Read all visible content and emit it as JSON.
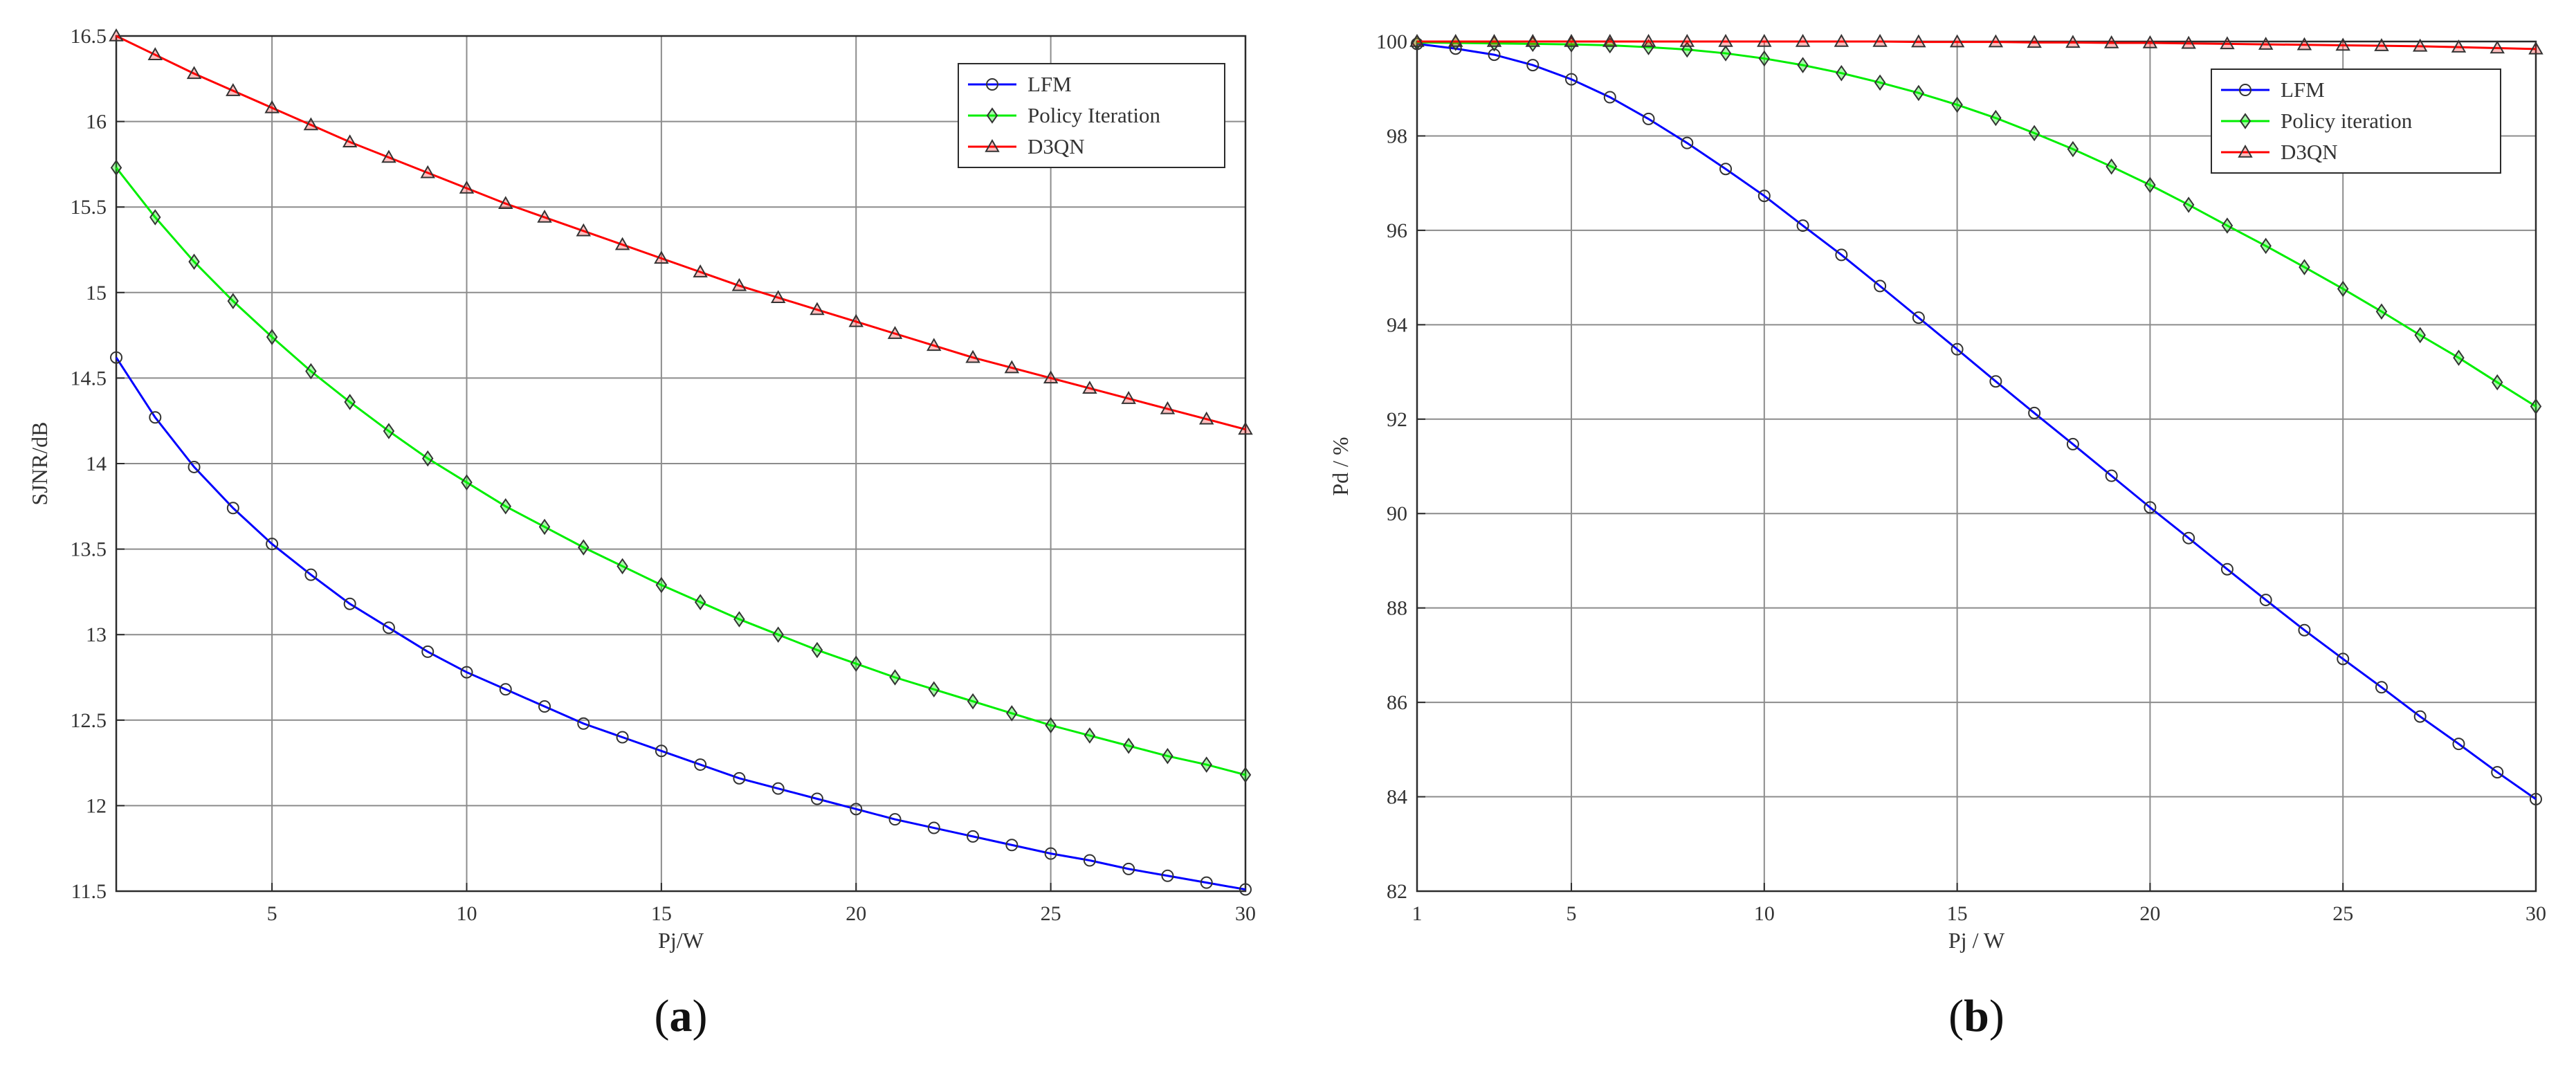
{
  "chart_data": [
    {
      "type": "line",
      "panel_label": "(a)",
      "xlabel": "Pj/W",
      "ylabel": "SJNR/dB",
      "xlim": [
        1,
        30
      ],
      "ylim": [
        11.5,
        16.5
      ],
      "xticks": [
        5,
        10,
        15,
        20,
        25,
        30
      ],
      "yticks": [
        11.5,
        12,
        12.5,
        13,
        13.5,
        14,
        14.5,
        15,
        15.5,
        16,
        16.5
      ],
      "grid": true,
      "legend_position": "top-right",
      "x": [
        1,
        2,
        3,
        4,
        5,
        6,
        7,
        8,
        9,
        10,
        11,
        12,
        13,
        14,
        15,
        16,
        17,
        18,
        19,
        20,
        21,
        22,
        23,
        24,
        25,
        26,
        27,
        28,
        29,
        30
      ],
      "series": [
        {
          "name": "LFM",
          "color": "#0000ff",
          "marker": "circle",
          "values": [
            14.62,
            14.27,
            13.98,
            13.74,
            13.53,
            13.35,
            13.18,
            13.04,
            12.9,
            12.78,
            12.68,
            12.58,
            12.48,
            12.4,
            12.32,
            12.24,
            12.16,
            12.1,
            12.04,
            11.98,
            11.92,
            11.87,
            11.82,
            11.77,
            11.72,
            11.68,
            11.63,
            11.59,
            11.55,
            11.51
          ]
        },
        {
          "name": "Policy Iteration",
          "color": "#00ee00",
          "marker": "diamond",
          "values": [
            15.73,
            15.44,
            15.18,
            14.95,
            14.74,
            14.54,
            14.36,
            14.19,
            14.03,
            13.89,
            13.75,
            13.63,
            13.51,
            13.4,
            13.29,
            13.19,
            13.09,
            13.0,
            12.91,
            12.83,
            12.75,
            12.68,
            12.61,
            12.54,
            12.47,
            12.41,
            12.35,
            12.29,
            12.24,
            12.18
          ]
        },
        {
          "name": "D3QN",
          "color": "#ff0000",
          "marker": "triangle",
          "values": [
            16.5,
            16.39,
            16.28,
            16.18,
            16.08,
            15.98,
            15.88,
            15.79,
            15.7,
            15.61,
            15.52,
            15.44,
            15.36,
            15.28,
            15.2,
            15.12,
            15.04,
            14.97,
            14.9,
            14.83,
            14.76,
            14.69,
            14.62,
            14.56,
            14.5,
            14.44,
            14.38,
            14.32,
            14.26,
            14.2
          ]
        }
      ]
    },
    {
      "type": "line",
      "panel_label": "(b)",
      "xlabel": "Pj / W",
      "ylabel": "Pd / %",
      "xlim": [
        1,
        30
      ],
      "ylim": [
        82,
        100
      ],
      "xticks": [
        1,
        5,
        10,
        15,
        20,
        25,
        30
      ],
      "yticks": [
        82,
        84,
        86,
        88,
        90,
        92,
        94,
        96,
        98,
        100
      ],
      "grid": true,
      "legend_position": "top-right",
      "x": [
        1,
        2,
        3,
        4,
        5,
        6,
        7,
        8,
        9,
        10,
        11,
        12,
        13,
        14,
        15,
        16,
        17,
        18,
        19,
        20,
        21,
        22,
        23,
        24,
        25,
        26,
        27,
        28,
        29,
        30
      ],
      "series": [
        {
          "name": "LFM",
          "color": "#0000ff",
          "marker": "circle",
          "values": [
            99.95,
            99.85,
            99.72,
            99.5,
            99.2,
            98.82,
            98.36,
            97.85,
            97.3,
            96.73,
            96.1,
            95.48,
            94.82,
            94.15,
            93.48,
            92.8,
            92.13,
            91.47,
            90.8,
            90.13,
            89.48,
            88.82,
            88.17,
            87.53,
            86.92,
            86.32,
            85.7,
            85.12,
            84.52,
            83.95
          ]
        },
        {
          "name": "Policy iteration",
          "color": "#00ee00",
          "marker": "diamond",
          "values": [
            99.98,
            99.97,
            99.96,
            99.95,
            99.94,
            99.92,
            99.88,
            99.83,
            99.75,
            99.64,
            99.5,
            99.33,
            99.13,
            98.91,
            98.66,
            98.38,
            98.06,
            97.72,
            97.35,
            96.96,
            96.54,
            96.1,
            95.67,
            95.22,
            94.76,
            94.28,
            93.78,
            93.3,
            92.78,
            92.27
          ]
        },
        {
          "name": "D3QN",
          "color": "#ff0000",
          "marker": "triangle",
          "values": [
            100.0,
            100.0,
            100.0,
            100.0,
            100.0,
            100.0,
            100.0,
            100.0,
            100.0,
            100.0,
            100.0,
            100.0,
            100.0,
            99.99,
            99.99,
            99.99,
            99.98,
            99.98,
            99.97,
            99.97,
            99.96,
            99.95,
            99.94,
            99.93,
            99.92,
            99.91,
            99.9,
            99.88,
            99.86,
            99.84
          ]
        }
      ]
    }
  ]
}
